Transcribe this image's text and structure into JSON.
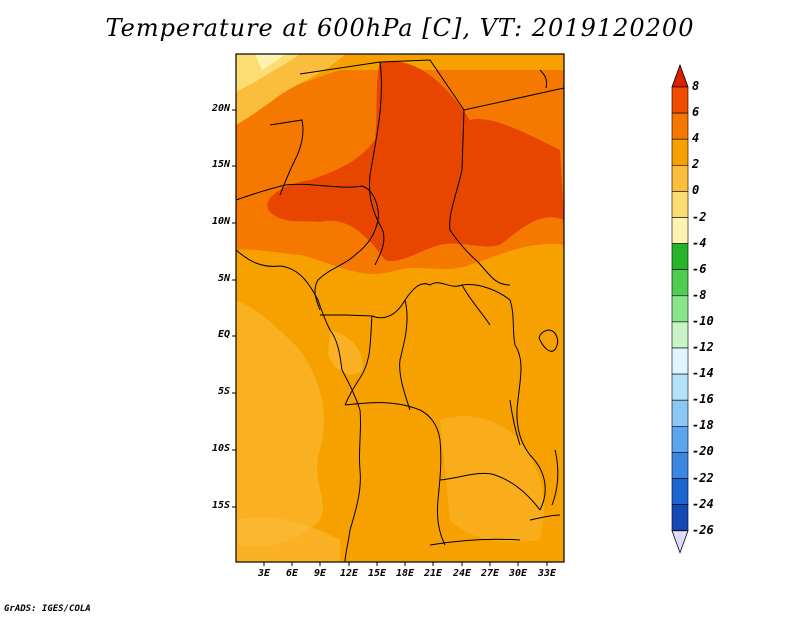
{
  "title": "Temperature at 600hPa [C], VT: 2019120200",
  "credit": "GrADS: IGES/COLA",
  "map": {
    "lat_ticks": [
      "20N",
      "15N",
      "10N",
      "5N",
      "EQ",
      "5S",
      "10S",
      "15S"
    ],
    "lon_ticks": [
      "3E",
      "6E",
      "9E",
      "12E",
      "15E",
      "18E",
      "21E",
      "24E",
      "27E",
      "30E",
      "33E"
    ],
    "lon_range": [
      0,
      35
    ],
    "lat_range": [
      -20,
      24
    ]
  },
  "colorbar": {
    "levels": [
      "8",
      "6",
      "4",
      "2",
      "0",
      "-2",
      "-4",
      "-6",
      "-8",
      "-10",
      "-12",
      "-14",
      "-16",
      "-18",
      "-20",
      "-22",
      "-24",
      "-26"
    ],
    "colors": [
      "#d62000",
      "#f04c00",
      "#f57800",
      "#f7a100",
      "#fbbd3c",
      "#fedc74",
      "#fff3b0",
      "#28b428",
      "#50cc50",
      "#8ae48a",
      "#c8f5c8",
      "#dff5ff",
      "#b4e1fa",
      "#8cc8f5",
      "#5aa5ed",
      "#3c87e1",
      "#1e64d2",
      "#1448b4",
      "#0a2a8c",
      "#dcdcff"
    ]
  }
}
